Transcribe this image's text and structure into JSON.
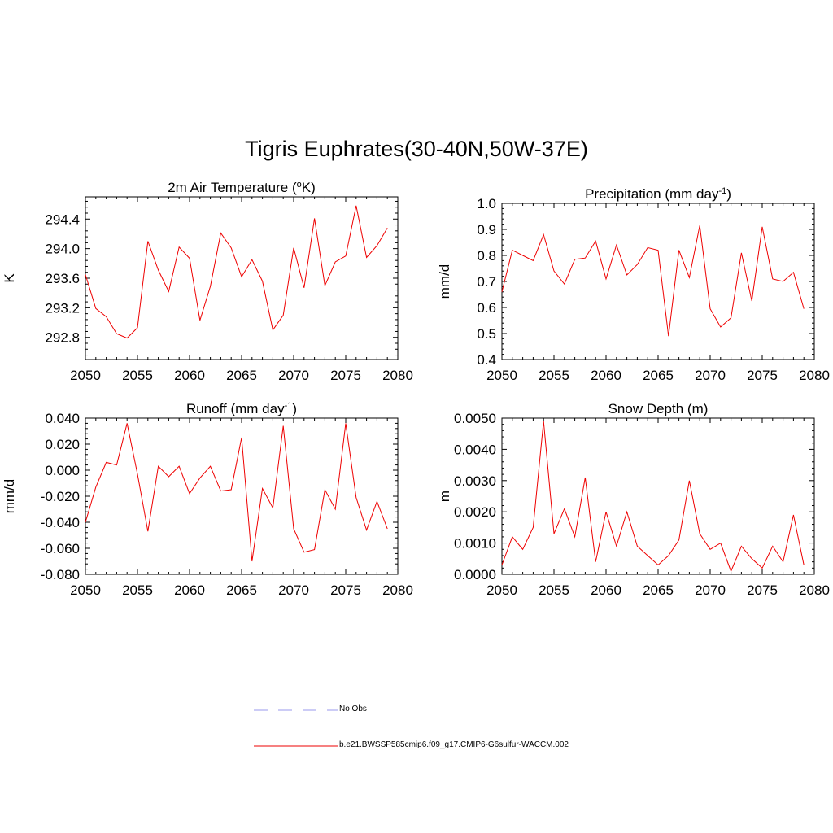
{
  "title": "Tigris Euphrates(30-40N,50W-37E)",
  "legend": {
    "obs_label": "No Obs",
    "obs_color": "#9999ee",
    "model_label": "b.e21.BWSSP585cmip6.f09_g17.CMIP6-G6sulfur-WACCM.002",
    "model_color": "#ee0000"
  },
  "chart_data": [
    {
      "type": "line",
      "title": "2m Air Temperature (",
      "title_sup": "o",
      "title_post": "K)",
      "ylabel": "K",
      "xlim": [
        2050,
        2080
      ],
      "ylim": [
        292.5,
        294.7
      ],
      "xticks": [
        "2050",
        "2055",
        "2060",
        "2065",
        "2070",
        "2075",
        "2080"
      ],
      "yticks": [
        "292.8",
        "293.2",
        "293.6",
        "294.0",
        "294.4"
      ],
      "x": [
        2050,
        2051,
        2052,
        2053,
        2054,
        2055,
        2056,
        2057,
        2058,
        2059,
        2060,
        2061,
        2062,
        2063,
        2064,
        2065,
        2066,
        2067,
        2068,
        2069,
        2070,
        2071,
        2072,
        2073,
        2074,
        2075,
        2076,
        2077,
        2078,
        2079
      ],
      "series": [
        {
          "color": "#ee0000",
          "values": [
            293.65,
            293.19,
            293.08,
            292.85,
            292.79,
            292.93,
            294.1,
            293.71,
            293.42,
            294.02,
            293.87,
            293.03,
            293.49,
            294.21,
            294.01,
            293.62,
            293.85,
            293.56,
            292.9,
            293.1,
            294.01,
            293.47,
            294.41,
            293.5,
            293.82,
            293.9,
            294.58,
            293.88,
            294.04,
            294.28
          ]
        }
      ]
    },
    {
      "type": "line",
      "title": "Precipitation (mm day",
      "title_sup": "-1",
      "title_post": ")",
      "ylabel": "mm/d",
      "xlim": [
        2050,
        2080
      ],
      "ylim": [
        0.4,
        1.0
      ],
      "xticks": [
        "2050",
        "2055",
        "2060",
        "2065",
        "2070",
        "2075",
        "2080"
      ],
      "yticks": [
        "0.4",
        "0.5",
        "0.6",
        "0.7",
        "0.8",
        "0.9",
        "1.0"
      ],
      "x": [
        2050,
        2051,
        2052,
        2053,
        2054,
        2055,
        2056,
        2057,
        2058,
        2059,
        2060,
        2061,
        2062,
        2063,
        2064,
        2065,
        2066,
        2067,
        2068,
        2069,
        2070,
        2071,
        2072,
        2073,
        2074,
        2075,
        2076,
        2077,
        2078,
        2079
      ],
      "series": [
        {
          "color": "#ee0000",
          "values": [
            0.66,
            0.82,
            0.8,
            0.78,
            0.88,
            0.74,
            0.69,
            0.785,
            0.79,
            0.855,
            0.71,
            0.84,
            0.725,
            0.765,
            0.83,
            0.82,
            0.49,
            0.82,
            0.715,
            0.915,
            0.595,
            0.525,
            0.56,
            0.81,
            0.625,
            0.91,
            0.71,
            0.7,
            0.735,
            0.595
          ]
        }
      ]
    },
    {
      "type": "line",
      "title": "Runoff (mm day",
      "title_sup": "-1",
      "title_post": ")",
      "ylabel": "mm/d",
      "xlim": [
        2050,
        2080
      ],
      "ylim": [
        -0.08,
        0.04
      ],
      "xticks": [
        "2050",
        "2055",
        "2060",
        "2065",
        "2070",
        "2075",
        "2080"
      ],
      "yticks": [
        "-0.080",
        "-0.060",
        "-0.040",
        "-0.020",
        "0.000",
        "0.020",
        "0.040"
      ],
      "x": [
        2050,
        2051,
        2052,
        2053,
        2054,
        2055,
        2056,
        2057,
        2058,
        2059,
        2060,
        2061,
        2062,
        2063,
        2064,
        2065,
        2066,
        2067,
        2068,
        2069,
        2070,
        2071,
        2072,
        2073,
        2074,
        2075,
        2076,
        2077,
        2078,
        2079
      ],
      "series": [
        {
          "color": "#ee0000",
          "values": [
            -0.04,
            -0.013,
            0.006,
            0.004,
            0.036,
            -0.003,
            -0.047,
            0.003,
            -0.005,
            0.003,
            -0.018,
            -0.006,
            0.003,
            -0.016,
            -0.015,
            0.025,
            -0.07,
            -0.014,
            -0.029,
            0.034,
            -0.045,
            -0.063,
            -0.061,
            -0.015,
            -0.03,
            0.036,
            -0.021,
            -0.046,
            -0.024,
            -0.045
          ]
        }
      ]
    },
    {
      "type": "line",
      "title": "Snow Depth (m)",
      "title_sup": "",
      "title_post": "",
      "ylabel": "m",
      "xlim": [
        2050,
        2080
      ],
      "ylim": [
        0.0,
        0.005
      ],
      "xticks": [
        "2050",
        "2055",
        "2060",
        "2065",
        "2070",
        "2075",
        "2080"
      ],
      "yticks": [
        "0.0000",
        "0.0010",
        "0.0020",
        "0.0030",
        "0.0040",
        "0.0050"
      ],
      "x": [
        2050,
        2051,
        2052,
        2053,
        2054,
        2055,
        2056,
        2057,
        2058,
        2059,
        2060,
        2061,
        2062,
        2063,
        2064,
        2065,
        2066,
        2067,
        2068,
        2069,
        2070,
        2071,
        2072,
        2073,
        2074,
        2075,
        2076,
        2077,
        2078,
        2079
      ],
      "series": [
        {
          "color": "#ee0000",
          "values": [
            0.0003,
            0.0012,
            0.0008,
            0.0015,
            0.0049,
            0.0013,
            0.0021,
            0.0012,
            0.0031,
            0.0004,
            0.002,
            0.0009,
            0.002,
            0.0009,
            0.0006,
            0.0003,
            0.0006,
            0.0011,
            0.003,
            0.0013,
            0.0008,
            0.001,
            0.0001,
            0.0009,
            0.0005,
            0.0002,
            0.0009,
            0.0004,
            0.0019,
            0.0003
          ]
        }
      ]
    }
  ]
}
